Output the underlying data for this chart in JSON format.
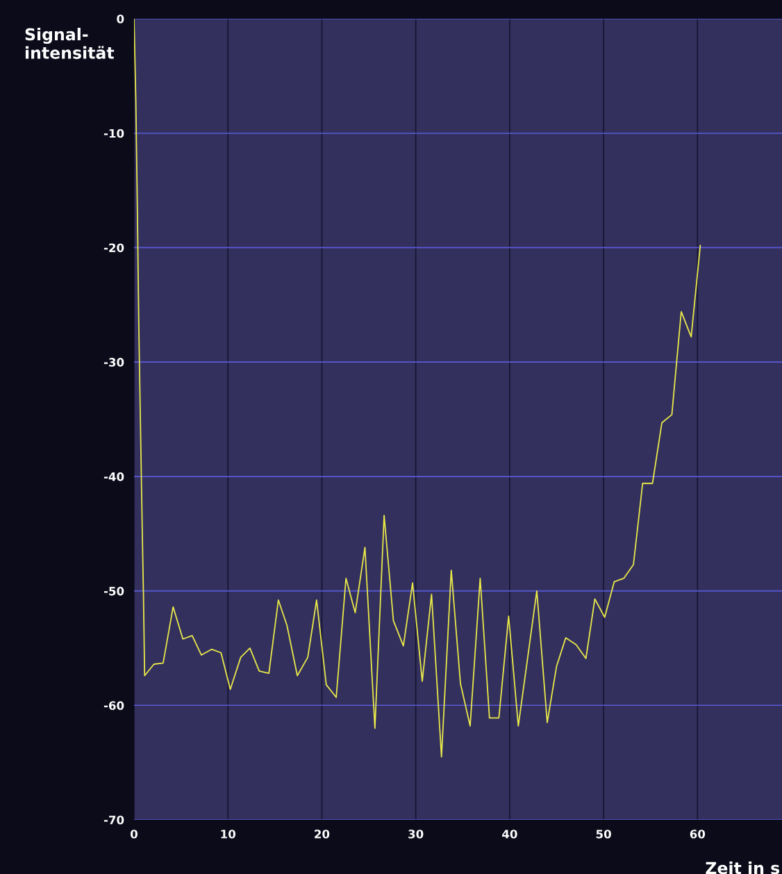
{
  "chart_data": {
    "type": "line",
    "xlabel": "Zeit in s",
    "ylabel": "Signal-\nintensität",
    "xlim": [
      0,
      69
    ],
    "ylim": [
      -70,
      0
    ],
    "xticks": [
      0,
      10,
      20,
      30,
      40,
      50,
      60
    ],
    "yticks": [
      -70,
      -60,
      -50,
      -40,
      -30,
      -20,
      -10,
      0
    ],
    "grid": true,
    "marker": "none",
    "line_style": "solid",
    "series": [
      {
        "color": "#e8e84a",
        "x": [
          0,
          0.19,
          0.36,
          0.5,
          0.69,
          0.89,
          1.0,
          1.13,
          2.12,
          3.1,
          4.16,
          5.2,
          6.19,
          7.17,
          8.28,
          9.26,
          10.25,
          11.36,
          12.34,
          13.33,
          14.36,
          15.37,
          16.28,
          17.39,
          18.5,
          19.44,
          20.47,
          21.53,
          22.57,
          23.55,
          24.59,
          25.65,
          26.63,
          27.62,
          28.68,
          29.66,
          30.69,
          31.68,
          32.74,
          33.78,
          34.76,
          35.79,
          36.86,
          37.85,
          38.85,
          39.89,
          40.92,
          42.89,
          44.0,
          44.99,
          45.97,
          47.08,
          48.12,
          49.07,
          50.12,
          51.13,
          52.15,
          53.18,
          54.16,
          55.21,
          56.21,
          57.27,
          58.27,
          59.33,
          60.3
        ],
        "values": [
          0,
          -7.1,
          -16.9,
          -26.4,
          -35.8,
          -45.4,
          -50.2,
          -57.4,
          -56.4,
          -56.3,
          -51.4,
          -54.2,
          -53.9,
          -55.6,
          -55.1,
          -55.4,
          -58.6,
          -55.8,
          -55.0,
          -57.0,
          -57.2,
          -50.8,
          -53.0,
          -57.4,
          -55.8,
          -50.8,
          -58.2,
          -59.3,
          -48.9,
          -51.9,
          -46.2,
          -62.0,
          -43.4,
          -52.6,
          -54.8,
          -49.3,
          -57.9,
          -50.3,
          -64.5,
          -48.2,
          -58.1,
          -61.8,
          -48.9,
          -61.1,
          -61.1,
          -52.2,
          -61.8,
          -50.0,
          -61.5,
          -56.6,
          -54.1,
          -54.7,
          -55.9,
          -50.7,
          -52.3,
          -49.2,
          -48.9,
          -47.7,
          -40.6,
          -40.6,
          -35.3,
          -34.6,
          -25.6,
          -27.8,
          -19.8
        ]
      }
    ]
  }
}
